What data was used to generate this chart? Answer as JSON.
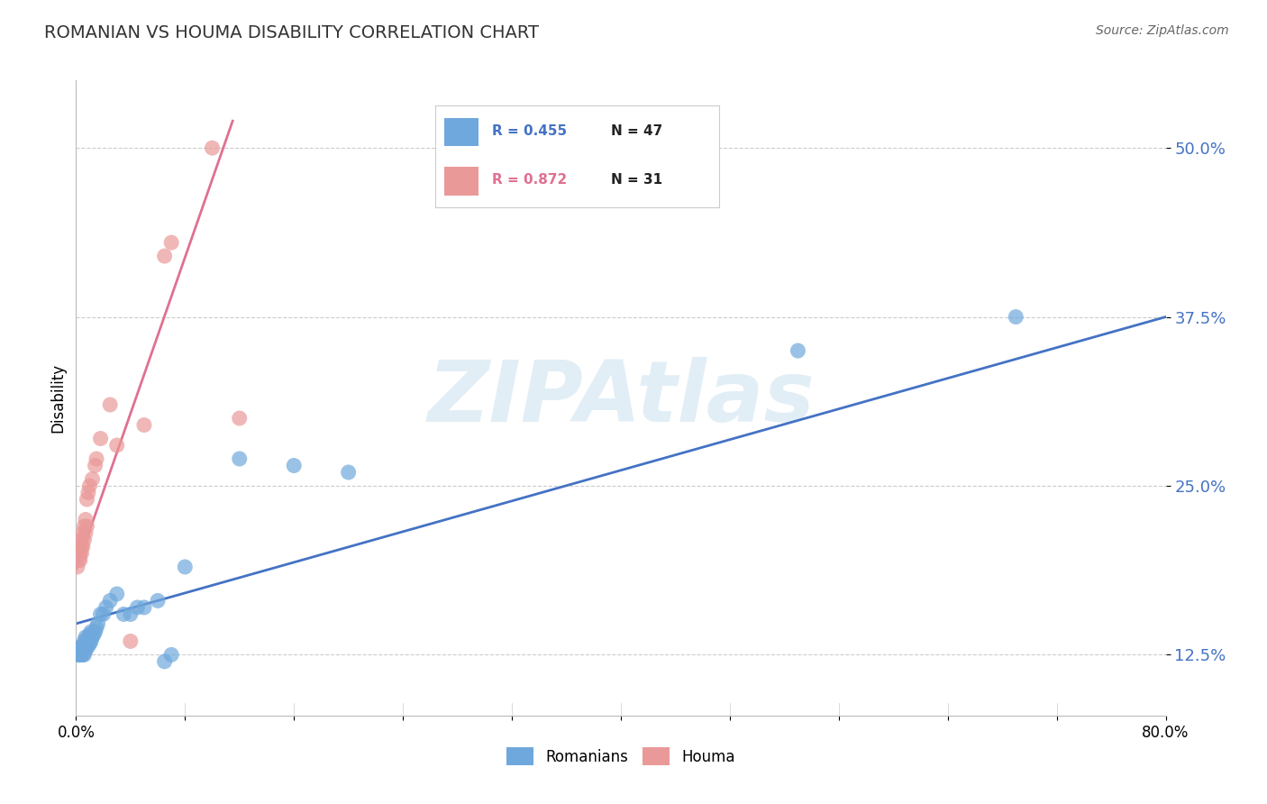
{
  "title": "ROMANIAN VS HOUMA DISABILITY CORRELATION CHART",
  "source": "Source: ZipAtlas.com",
  "ylabel": "Disability",
  "xlim": [
    0.0,
    0.8
  ],
  "ylim": [
    0.08,
    0.55
  ],
  "yticks": [
    0.125,
    0.25,
    0.375,
    0.5
  ],
  "ytick_labels": [
    "12.5%",
    "25.0%",
    "37.5%",
    "50.0%"
  ],
  "xticks": [
    0.0,
    0.08,
    0.16,
    0.24,
    0.32,
    0.4,
    0.48,
    0.56,
    0.64,
    0.72,
    0.8
  ],
  "xtick_labels": [
    "0.0%",
    "",
    "",
    "",
    "",
    "",
    "",
    "",
    "",
    "",
    "80.0%"
  ],
  "blue_R": 0.455,
  "blue_N": 47,
  "pink_R": 0.872,
  "pink_N": 31,
  "blue_color": "#6fa8dc",
  "pink_color": "#ea9999",
  "blue_line_color": "#4472c4",
  "pink_line_color": "#e07090",
  "watermark": "ZIPAtlas",
  "watermark_color": "#d0e4f0",
  "legend_label_blue": "Romanians",
  "legend_label_pink": "Houma",
  "blue_scatter": [
    [
      0.001,
      0.125
    ],
    [
      0.002,
      0.125
    ],
    [
      0.002,
      0.13
    ],
    [
      0.003,
      0.125
    ],
    [
      0.003,
      0.128
    ],
    [
      0.004,
      0.125
    ],
    [
      0.004,
      0.13
    ],
    [
      0.005,
      0.125
    ],
    [
      0.005,
      0.128
    ],
    [
      0.005,
      0.132
    ],
    [
      0.006,
      0.125
    ],
    [
      0.006,
      0.13
    ],
    [
      0.006,
      0.135
    ],
    [
      0.007,
      0.128
    ],
    [
      0.007,
      0.132
    ],
    [
      0.007,
      0.138
    ],
    [
      0.008,
      0.13
    ],
    [
      0.008,
      0.135
    ],
    [
      0.009,
      0.132
    ],
    [
      0.009,
      0.138
    ],
    [
      0.01,
      0.133
    ],
    [
      0.01,
      0.14
    ],
    [
      0.011,
      0.135
    ],
    [
      0.011,
      0.142
    ],
    [
      0.012,
      0.138
    ],
    [
      0.013,
      0.14
    ],
    [
      0.014,
      0.142
    ],
    [
      0.015,
      0.145
    ],
    [
      0.016,
      0.148
    ],
    [
      0.018,
      0.155
    ],
    [
      0.02,
      0.155
    ],
    [
      0.022,
      0.16
    ],
    [
      0.025,
      0.165
    ],
    [
      0.03,
      0.17
    ],
    [
      0.035,
      0.155
    ],
    [
      0.04,
      0.155
    ],
    [
      0.045,
      0.16
    ],
    [
      0.05,
      0.16
    ],
    [
      0.06,
      0.165
    ],
    [
      0.065,
      0.12
    ],
    [
      0.07,
      0.125
    ],
    [
      0.08,
      0.19
    ],
    [
      0.12,
      0.27
    ],
    [
      0.16,
      0.265
    ],
    [
      0.2,
      0.26
    ],
    [
      0.53,
      0.35
    ],
    [
      0.69,
      0.375
    ]
  ],
  "pink_scatter": [
    [
      0.001,
      0.19
    ],
    [
      0.002,
      0.195
    ],
    [
      0.002,
      0.2
    ],
    [
      0.003,
      0.195
    ],
    [
      0.003,
      0.2
    ],
    [
      0.003,
      0.205
    ],
    [
      0.004,
      0.2
    ],
    [
      0.004,
      0.205
    ],
    [
      0.004,
      0.21
    ],
    [
      0.005,
      0.205
    ],
    [
      0.005,
      0.215
    ],
    [
      0.006,
      0.21
    ],
    [
      0.006,
      0.22
    ],
    [
      0.007,
      0.215
    ],
    [
      0.007,
      0.225
    ],
    [
      0.008,
      0.22
    ],
    [
      0.008,
      0.24
    ],
    [
      0.009,
      0.245
    ],
    [
      0.01,
      0.25
    ],
    [
      0.012,
      0.255
    ],
    [
      0.014,
      0.265
    ],
    [
      0.015,
      0.27
    ],
    [
      0.018,
      0.285
    ],
    [
      0.025,
      0.31
    ],
    [
      0.03,
      0.28
    ],
    [
      0.04,
      0.135
    ],
    [
      0.05,
      0.295
    ],
    [
      0.065,
      0.42
    ],
    [
      0.07,
      0.43
    ],
    [
      0.1,
      0.5
    ],
    [
      0.12,
      0.3
    ]
  ],
  "blue_line_x": [
    0.0,
    0.8
  ],
  "blue_line_y": [
    0.148,
    0.375
  ],
  "pink_line_x": [
    0.0,
    0.115
  ],
  "pink_line_y": [
    0.188,
    0.52
  ]
}
